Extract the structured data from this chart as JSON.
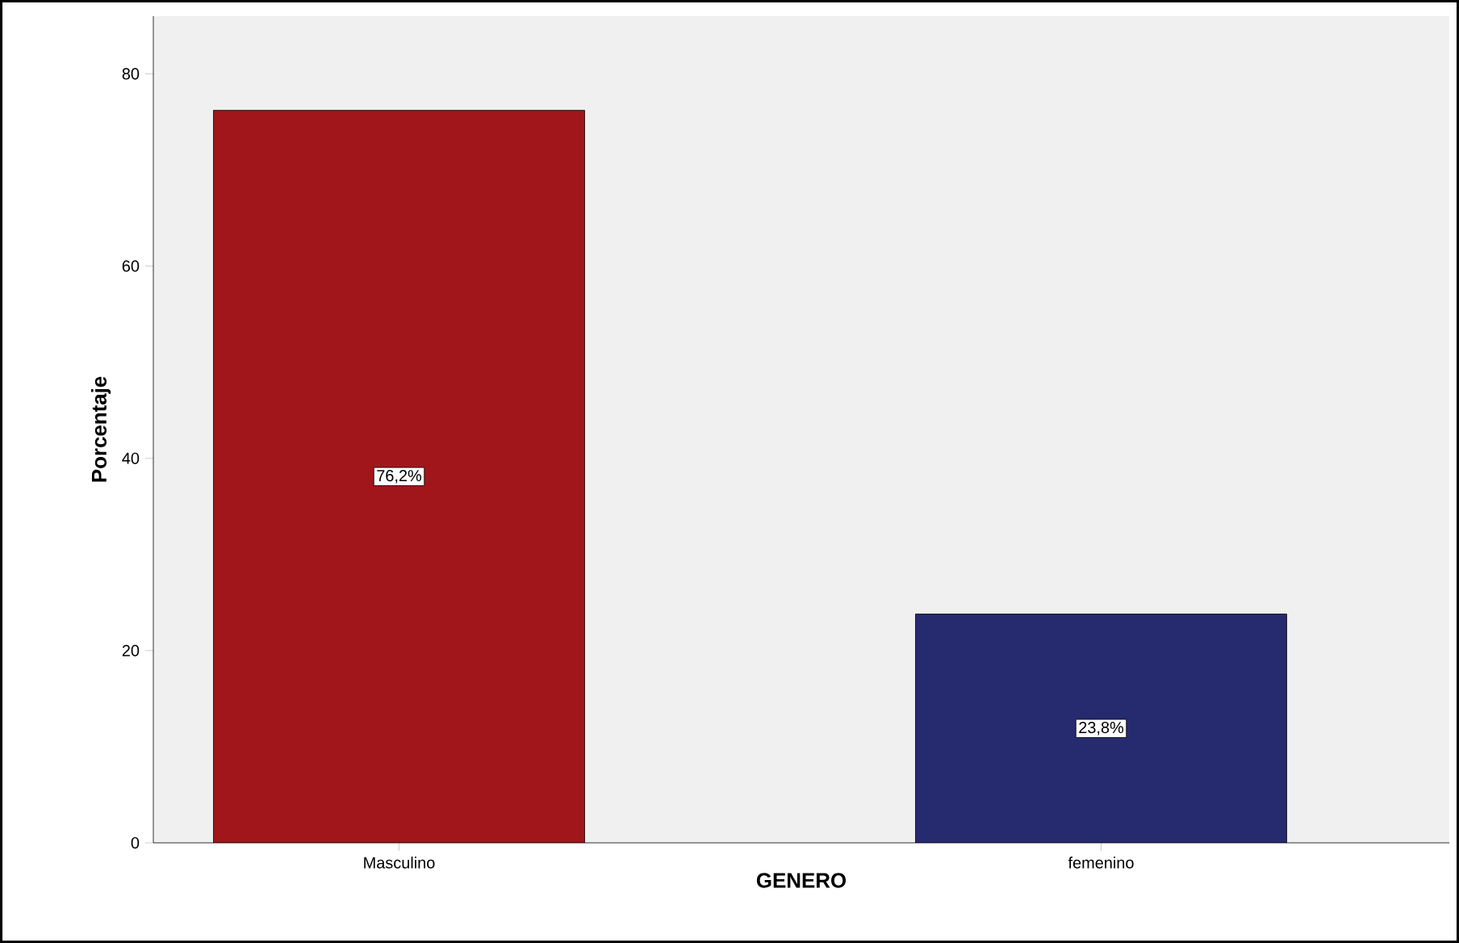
{
  "chart_data": {
    "type": "bar",
    "xlabel": "GENERO",
    "ylabel": "Porcentaje",
    "categories": [
      "Masculino",
      "femenino"
    ],
    "values": [
      76.2,
      23.8
    ],
    "colors": [
      "#a0161b",
      "#262a6e"
    ],
    "value_labels": [
      "76,2%",
      "23,8%"
    ],
    "ylim": [
      0,
      86
    ],
    "yticks": [
      0,
      20,
      40,
      60,
      80
    ],
    "grid": false
  }
}
